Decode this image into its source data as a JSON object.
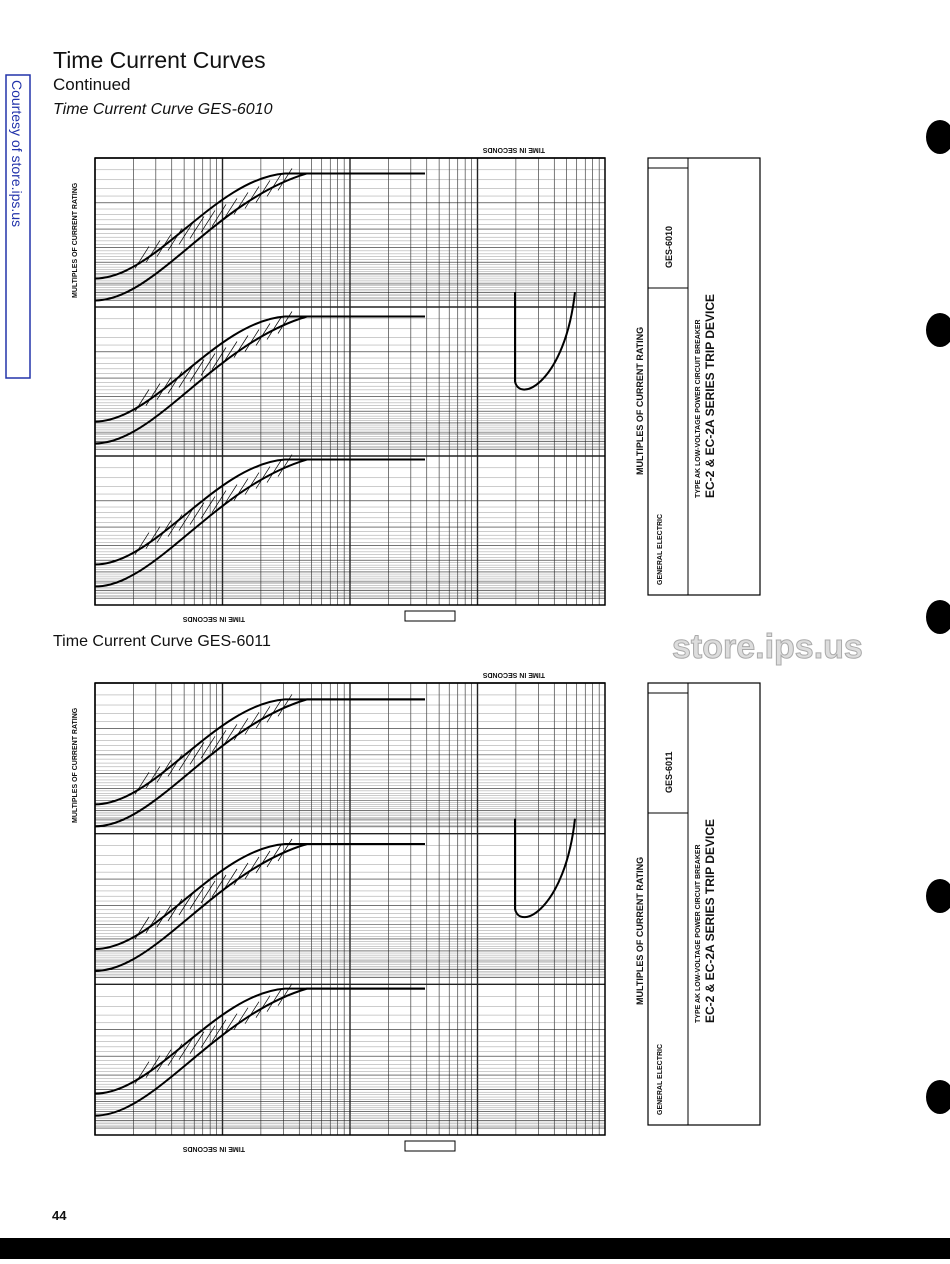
{
  "sidebar": {
    "text": "Courtesy of store.ips.us"
  },
  "header": {
    "title": "Time Current Curves",
    "subtitle": "Continued"
  },
  "figures": [
    {
      "caption": "Time Current Curve GES-6010",
      "axis_labels": {
        "x": "TIME IN SECONDS",
        "y": "MULTIPLES OF CURRENT RATING",
        "bottom": "MULTIPLES OF CURRENT RATING"
      },
      "panel": {
        "brand": "GENERAL ELECTRIC",
        "breaker": "TYPE AK LOW-VOLTAGE POWER CIRCUIT BREAKER",
        "device": "EC-2 & EC-2A SERIES TRIP DEVICE",
        "curve_id": "GES-6010"
      }
    },
    {
      "caption": "Time Current Curve GES-6011",
      "axis_labels": {
        "x": "TIME IN SECONDS",
        "y": "MULTIPLES OF CURRENT RATING",
        "bottom": "MULTIPLES OF CURRENT RATING"
      },
      "panel": {
        "brand": "GENERAL ELECTRIC",
        "breaker": "TYPE AK LOW-VOLTAGE POWER CIRCUIT BREAKER",
        "device": "EC-2 & EC-2A SERIES TRIP DEVICE",
        "curve_id": "GES-6011"
      }
    }
  ],
  "watermark": "store.ips.us",
  "page_number": "44"
}
